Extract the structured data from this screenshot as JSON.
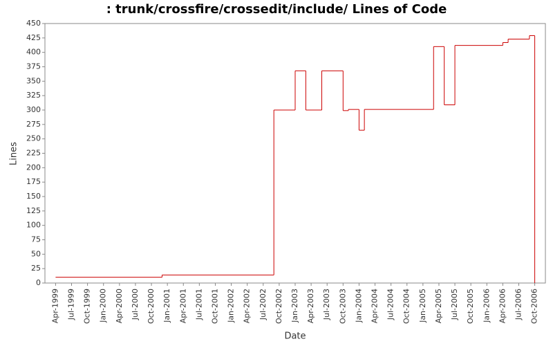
{
  "chart_data": {
    "type": "step-line",
    "title": ": trunk/crossfire/crossedit/include/ Lines of Code",
    "x_label": "Date",
    "y_label": "Lines",
    "series": [
      {
        "name": "Lines",
        "color": "#cc0000",
        "x": [
          "1999-04",
          "2000-12",
          "2002-09",
          "2003-01",
          "2003-03",
          "2003-06",
          "2003-10",
          "2003-11",
          "2004-01",
          "2004-02",
          "2005-03",
          "2005-05",
          "2005-07",
          "2006-04",
          "2006-05",
          "2006-09",
          "2006-10"
        ],
        "values": [
          10,
          14,
          300,
          368,
          300,
          368,
          299,
          301,
          265,
          301,
          410,
          309,
          412,
          417,
          423,
          429,
          0
        ]
      }
    ],
    "xlim": [
      "1999-02",
      "2006-12"
    ],
    "xticks": [
      {
        "value": "1999-04",
        "label": "Apr-1999"
      },
      {
        "value": "1999-07",
        "label": "Jul-1999"
      },
      {
        "value": "1999-10",
        "label": "Oct-1999"
      },
      {
        "value": "2000-01",
        "label": "Jan-2000"
      },
      {
        "value": "2000-04",
        "label": "Apr-2000"
      },
      {
        "value": "2000-07",
        "label": "Jul-2000"
      },
      {
        "value": "2000-10",
        "label": "Oct-2000"
      },
      {
        "value": "2001-01",
        "label": "Jan-2001"
      },
      {
        "value": "2001-04",
        "label": "Apr-2001"
      },
      {
        "value": "2001-07",
        "label": "Jul-2001"
      },
      {
        "value": "2001-10",
        "label": "Oct-2001"
      },
      {
        "value": "2002-01",
        "label": "Jan-2002"
      },
      {
        "value": "2002-04",
        "label": "Apr-2002"
      },
      {
        "value": "2002-07",
        "label": "Jul-2002"
      },
      {
        "value": "2002-10",
        "label": "Oct-2002"
      },
      {
        "value": "2003-01",
        "label": "Jan-2003"
      },
      {
        "value": "2003-04",
        "label": "Apr-2003"
      },
      {
        "value": "2003-07",
        "label": "Jul-2003"
      },
      {
        "value": "2003-10",
        "label": "Oct-2003"
      },
      {
        "value": "2004-01",
        "label": "Jan-2004"
      },
      {
        "value": "2004-04",
        "label": "Apr-2004"
      },
      {
        "value": "2004-07",
        "label": "Jul-2004"
      },
      {
        "value": "2004-10",
        "label": "Oct-2004"
      },
      {
        "value": "2005-01",
        "label": "Jan-2005"
      },
      {
        "value": "2005-04",
        "label": "Apr-2005"
      },
      {
        "value": "2005-07",
        "label": "Jul-2005"
      },
      {
        "value": "2005-10",
        "label": "Oct-2005"
      },
      {
        "value": "2006-01",
        "label": "Jan-2006"
      },
      {
        "value": "2006-04",
        "label": "Apr-2006"
      },
      {
        "value": "2006-07",
        "label": "Jul-2006"
      },
      {
        "value": "2006-10",
        "label": "Oct-2006"
      }
    ],
    "ylim": [
      0,
      450
    ],
    "yticks": [
      0,
      25,
      50,
      75,
      100,
      125,
      150,
      175,
      200,
      225,
      250,
      275,
      300,
      325,
      350,
      375,
      400,
      425,
      450
    ],
    "grid": false
  }
}
